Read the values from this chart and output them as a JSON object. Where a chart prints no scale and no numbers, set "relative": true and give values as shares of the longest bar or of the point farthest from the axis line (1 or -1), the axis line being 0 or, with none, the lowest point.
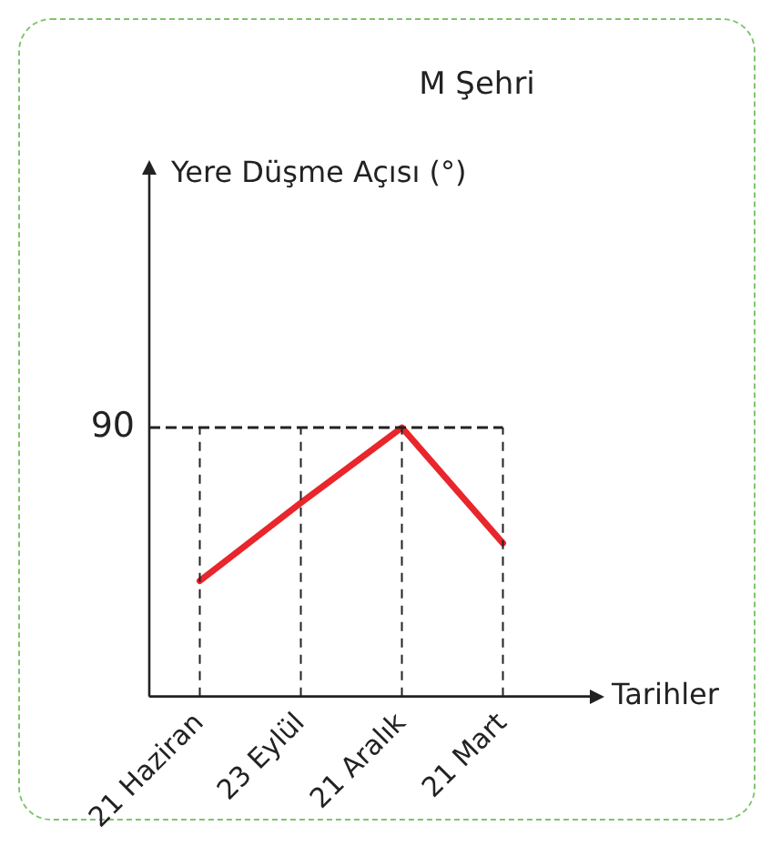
{
  "chart_data": {
    "type": "line",
    "title": "M Şehri",
    "xlabel": "Tarihler",
    "relative": true,
    "categories": [
      "21 Haziran",
      "23 Eylül",
      "21 Aralık",
      "21 Mart"
    ],
    "series": [
      {
        "color": "#e8262b",
        "values": [
          0.43,
          0.72,
          1,
          0.57
        ]
      }
    ],
    "ref_lines": [
      {
        "axis": "y",
        "value": 1,
        "line_style": "dashed",
        "color": "#222222"
      }
    ],
    "annotations": [
      "Yere Düşme Açısı (°)",
      "90"
    ],
    "grid": "x",
    "legend": false,
    "marker": "none",
    "line_style": "solid"
  }
}
